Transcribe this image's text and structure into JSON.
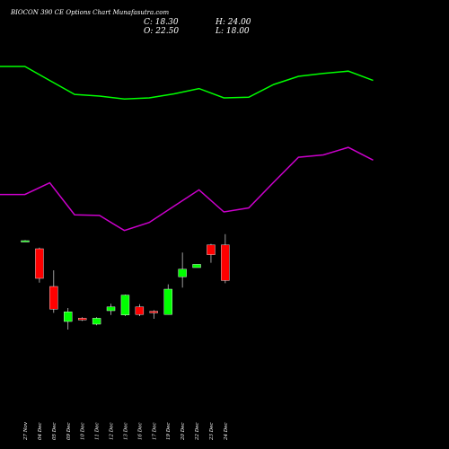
{
  "chart_data": {
    "type": "candlestick",
    "title": "BIOCON 390 CE Options Chart Munafasutra.com",
    "ohlc": {
      "C": "18.30",
      "H": "24.00",
      "O": "22.50",
      "L": "18.00"
    },
    "colors": {
      "up": "#00ff00",
      "down": "#ff0000",
      "upper_line": "#00ff00",
      "lower_line": "#cc00cc",
      "background": "#000000",
      "text": "#ffffff"
    },
    "dates": [
      "27 Nov",
      "04 Dec",
      "05 Dec",
      "09 Dec",
      "10 Dec",
      "11 Dec",
      "12 Dec",
      "13 Dec",
      "16 Dec",
      "17 Dec",
      "19 Dec",
      "20 Dec",
      "22 Dec",
      "23 Dec",
      "24 Dec"
    ],
    "candles": [
      {
        "o": 30.0,
        "h": 30.1,
        "l": 29.9,
        "c": 30.0
      },
      {
        "o": 28.5,
        "h": 28.7,
        "l": 22.2,
        "c": 23.0
      },
      {
        "o": 21.5,
        "h": 24.5,
        "l": 16.6,
        "c": 17.3
      },
      {
        "o": 15.0,
        "h": 17.5,
        "l": 13.5,
        "c": 16.8
      },
      {
        "o": 15.6,
        "h": 15.8,
        "l": 15.1,
        "c": 15.3
      },
      {
        "o": 14.5,
        "h": 15.8,
        "l": 14.3,
        "c": 15.6
      },
      {
        "o": 17.0,
        "h": 18.3,
        "l": 16.2,
        "c": 17.7
      },
      {
        "o": 16.2,
        "h": 20.0,
        "l": 16.0,
        "c": 19.9
      },
      {
        "o": 17.7,
        "h": 18.2,
        "l": 16.0,
        "c": 16.3
      },
      {
        "o": 16.9,
        "h": 17.1,
        "l": 15.5,
        "c": 16.6
      },
      {
        "o": 16.3,
        "h": 21.9,
        "l": 16.3,
        "c": 21.0
      },
      {
        "o": 23.3,
        "h": 27.8,
        "l": 21.3,
        "c": 24.7
      },
      {
        "o": 25.0,
        "h": 25.6,
        "l": 25.0,
        "c": 25.6
      },
      {
        "o": 29.2,
        "h": 29.4,
        "l": 25.9,
        "c": 27.4
      },
      {
        "o": 29.2,
        "h": 31.2,
        "l": 22.1,
        "c": 22.6
      }
    ],
    "upper_line": [
      90.0,
      90.0,
      87.6,
      85.2,
      84.9,
      84.4,
      84.6,
      85.3,
      86.2,
      84.6,
      84.7,
      86.9,
      88.3,
      88.8,
      89.2,
      87.6
    ],
    "lower_line": [
      68.0,
      68.0,
      70.0,
      64.5,
      64.4,
      61.8,
      63.2,
      66.0,
      68.8,
      65.0,
      65.7,
      70.1,
      74.4,
      74.8,
      76.1,
      73.9
    ]
  }
}
